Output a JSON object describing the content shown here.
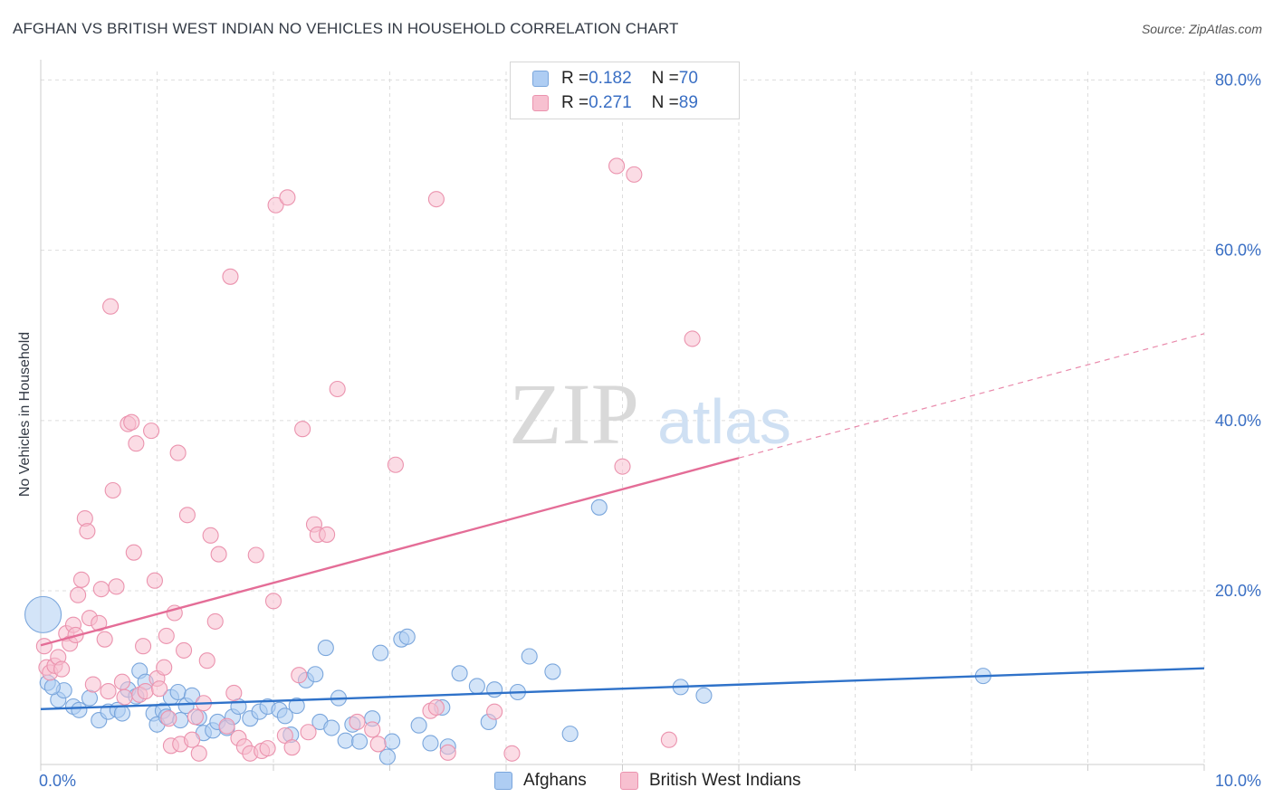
{
  "title": "AFGHAN VS BRITISH WEST INDIAN NO VEHICLES IN HOUSEHOLD CORRELATION CHART",
  "source": "Source: ZipAtlas.com",
  "watermark": {
    "zip": "ZIP",
    "atlas": "atlas"
  },
  "legend": {
    "rows": [
      {
        "r_label": "R = ",
        "r_value": "0.182",
        "n_label": "N = ",
        "n_value": "70"
      },
      {
        "r_label": "R = ",
        "r_value": "0.271",
        "n_label": "N = ",
        "n_value": "89"
      }
    ]
  },
  "colors": {
    "afghans_fill": "#aecdf3",
    "afghans_stroke": "#7aa6dc",
    "afghans_line": "#2f72c9",
    "bwi_fill": "#f7c0d0",
    "bwi_stroke": "#eb93ae",
    "bwi_line": "#e46d97",
    "tick_text": "#3a6fc4",
    "grid": "#dddddd"
  },
  "chart_data": {
    "type": "scatter",
    "title": "AFGHAN VS BRITISH WEST INDIAN NO VEHICLES IN HOUSEHOLD CORRELATION CHART",
    "xlabel": "",
    "ylabel": "No Vehicles in Household",
    "xlim": [
      0,
      10
    ],
    "ylim": [
      -0.4,
      81
    ],
    "x_tick_labels": [
      "0.0%",
      "10.0%"
    ],
    "y_ticks": [
      {
        "value": 20,
        "label": "20.0%"
      },
      {
        "value": 40,
        "label": "40.0%"
      },
      {
        "value": 60,
        "label": "60.0%"
      },
      {
        "value": 80,
        "label": "80.0%"
      }
    ],
    "series": [
      {
        "name": "Afghans",
        "r": 0.182,
        "n": 70,
        "trend": {
          "x": [
            0,
            10
          ],
          "y": [
            6.1,
            10.9
          ],
          "dashed_to": null
        },
        "points": [
          {
            "x": 0.02,
            "y": 17.2,
            "big": true
          },
          {
            "x": 0.06,
            "y": 9.2
          },
          {
            "x": 0.15,
            "y": 7.2
          },
          {
            "x": 0.2,
            "y": 8.3
          },
          {
            "x": 0.28,
            "y": 6.4
          },
          {
            "x": 0.33,
            "y": 6.0
          },
          {
            "x": 0.42,
            "y": 7.4
          },
          {
            "x": 0.5,
            "y": 4.8
          },
          {
            "x": 0.58,
            "y": 5.8
          },
          {
            "x": 0.66,
            "y": 6.0
          },
          {
            "x": 0.7,
            "y": 5.6
          },
          {
            "x": 0.75,
            "y": 8.4
          },
          {
            "x": 0.82,
            "y": 7.6
          },
          {
            "x": 0.85,
            "y": 10.6
          },
          {
            "x": 0.9,
            "y": 9.3
          },
          {
            "x": 0.97,
            "y": 5.6
          },
          {
            "x": 1.0,
            "y": 4.3
          },
          {
            "x": 1.05,
            "y": 5.9
          },
          {
            "x": 1.08,
            "y": 5.2
          },
          {
            "x": 1.12,
            "y": 7.5
          },
          {
            "x": 1.18,
            "y": 8.1
          },
          {
            "x": 1.2,
            "y": 4.8
          },
          {
            "x": 1.25,
            "y": 6.5
          },
          {
            "x": 1.3,
            "y": 7.7
          },
          {
            "x": 1.36,
            "y": 5.1
          },
          {
            "x": 1.4,
            "y": 3.3
          },
          {
            "x": 1.48,
            "y": 3.6
          },
          {
            "x": 1.52,
            "y": 4.6
          },
          {
            "x": 1.6,
            "y": 3.9
          },
          {
            "x": 1.65,
            "y": 5.2
          },
          {
            "x": 1.7,
            "y": 6.4
          },
          {
            "x": 1.8,
            "y": 5.0
          },
          {
            "x": 1.88,
            "y": 5.8
          },
          {
            "x": 1.95,
            "y": 6.4
          },
          {
            "x": 2.05,
            "y": 6.0
          },
          {
            "x": 2.1,
            "y": 5.3
          },
          {
            "x": 2.15,
            "y": 3.1
          },
          {
            "x": 2.2,
            "y": 6.5
          },
          {
            "x": 2.28,
            "y": 9.5
          },
          {
            "x": 2.36,
            "y": 10.2
          },
          {
            "x": 2.4,
            "y": 4.6
          },
          {
            "x": 2.45,
            "y": 13.3
          },
          {
            "x": 2.5,
            "y": 3.9
          },
          {
            "x": 2.56,
            "y": 7.4
          },
          {
            "x": 2.62,
            "y": 2.4
          },
          {
            "x": 2.68,
            "y": 4.3
          },
          {
            "x": 2.74,
            "y": 2.3
          },
          {
            "x": 2.85,
            "y": 5.0
          },
          {
            "x": 2.92,
            "y": 12.7
          },
          {
            "x": 2.98,
            "y": 0.5
          },
          {
            "x": 3.02,
            "y": 2.3
          },
          {
            "x": 3.1,
            "y": 14.3
          },
          {
            "x": 3.15,
            "y": 14.6
          },
          {
            "x": 3.25,
            "y": 4.2
          },
          {
            "x": 3.35,
            "y": 2.1
          },
          {
            "x": 3.45,
            "y": 6.3
          },
          {
            "x": 3.5,
            "y": 1.7
          },
          {
            "x": 3.6,
            "y": 10.3
          },
          {
            "x": 3.75,
            "y": 8.8
          },
          {
            "x": 3.85,
            "y": 4.6
          },
          {
            "x": 3.9,
            "y": 8.4
          },
          {
            "x": 4.1,
            "y": 8.1
          },
          {
            "x": 4.2,
            "y": 12.3
          },
          {
            "x": 4.4,
            "y": 10.5
          },
          {
            "x": 4.55,
            "y": 3.2
          },
          {
            "x": 4.8,
            "y": 29.8
          },
          {
            "x": 5.5,
            "y": 8.7
          },
          {
            "x": 5.7,
            "y": 7.7
          },
          {
            "x": 8.1,
            "y": 10.0
          },
          {
            "x": 0.1,
            "y": 8.7
          }
        ]
      },
      {
        "name": "British West Indians",
        "r": 0.271,
        "n": 89,
        "trend": {
          "x": [
            0,
            6
          ],
          "y": [
            13.6,
            35.6
          ],
          "dashed_to": {
            "x": 10,
            "y": 50.2
          }
        },
        "points": [
          {
            "x": 0.03,
            "y": 13.5
          },
          {
            "x": 0.05,
            "y": 11.0
          },
          {
            "x": 0.08,
            "y": 10.4
          },
          {
            "x": 0.12,
            "y": 11.2
          },
          {
            "x": 0.15,
            "y": 12.2
          },
          {
            "x": 0.18,
            "y": 10.8
          },
          {
            "x": 0.22,
            "y": 15.0
          },
          {
            "x": 0.25,
            "y": 13.8
          },
          {
            "x": 0.28,
            "y": 16.0
          },
          {
            "x": 0.3,
            "y": 14.8
          },
          {
            "x": 0.32,
            "y": 19.5
          },
          {
            "x": 0.35,
            "y": 21.3
          },
          {
            "x": 0.38,
            "y": 28.5
          },
          {
            "x": 0.4,
            "y": 27.0
          },
          {
            "x": 0.42,
            "y": 16.8
          },
          {
            "x": 0.45,
            "y": 9.0
          },
          {
            "x": 0.5,
            "y": 16.2
          },
          {
            "x": 0.52,
            "y": 20.2
          },
          {
            "x": 0.55,
            "y": 14.3
          },
          {
            "x": 0.58,
            "y": 8.2
          },
          {
            "x": 0.6,
            "y": 53.4
          },
          {
            "x": 0.62,
            "y": 31.8
          },
          {
            "x": 0.65,
            "y": 20.5
          },
          {
            "x": 0.7,
            "y": 9.3
          },
          {
            "x": 0.72,
            "y": 7.5
          },
          {
            "x": 0.75,
            "y": 39.6
          },
          {
            "x": 0.78,
            "y": 39.8
          },
          {
            "x": 0.8,
            "y": 24.5
          },
          {
            "x": 0.82,
            "y": 37.3
          },
          {
            "x": 0.85,
            "y": 7.8
          },
          {
            "x": 0.88,
            "y": 13.5
          },
          {
            "x": 0.9,
            "y": 8.2
          },
          {
            "x": 0.95,
            "y": 38.8
          },
          {
            "x": 0.98,
            "y": 21.2
          },
          {
            "x": 1.0,
            "y": 9.7
          },
          {
            "x": 1.02,
            "y": 8.5
          },
          {
            "x": 1.06,
            "y": 11.0
          },
          {
            "x": 1.08,
            "y": 14.7
          },
          {
            "x": 1.1,
            "y": 5.0
          },
          {
            "x": 1.12,
            "y": 1.8
          },
          {
            "x": 1.15,
            "y": 17.4
          },
          {
            "x": 1.18,
            "y": 36.2
          },
          {
            "x": 1.2,
            "y": 2.0
          },
          {
            "x": 1.23,
            "y": 13.0
          },
          {
            "x": 1.26,
            "y": 28.9
          },
          {
            "x": 1.3,
            "y": 2.5
          },
          {
            "x": 1.33,
            "y": 5.2
          },
          {
            "x": 1.36,
            "y": 0.9
          },
          {
            "x": 1.4,
            "y": 6.8
          },
          {
            "x": 1.43,
            "y": 11.8
          },
          {
            "x": 1.46,
            "y": 26.5
          },
          {
            "x": 1.5,
            "y": 16.4
          },
          {
            "x": 1.53,
            "y": 24.3
          },
          {
            "x": 1.6,
            "y": 4.1
          },
          {
            "x": 1.63,
            "y": 56.9
          },
          {
            "x": 1.66,
            "y": 8.0
          },
          {
            "x": 1.7,
            "y": 2.7
          },
          {
            "x": 1.75,
            "y": 1.7
          },
          {
            "x": 1.8,
            "y": 0.9
          },
          {
            "x": 1.85,
            "y": 24.2
          },
          {
            "x": 1.9,
            "y": 1.2
          },
          {
            "x": 1.95,
            "y": 1.5
          },
          {
            "x": 2.0,
            "y": 18.8
          },
          {
            "x": 2.02,
            "y": 65.3
          },
          {
            "x": 2.1,
            "y": 3.0
          },
          {
            "x": 2.12,
            "y": 66.2
          },
          {
            "x": 2.16,
            "y": 1.6
          },
          {
            "x": 2.22,
            "y": 10.1
          },
          {
            "x": 2.25,
            "y": 39.0
          },
          {
            "x": 2.3,
            "y": 3.4
          },
          {
            "x": 2.35,
            "y": 27.8
          },
          {
            "x": 2.38,
            "y": 26.6
          },
          {
            "x": 2.46,
            "y": 26.6
          },
          {
            "x": 2.55,
            "y": 43.7
          },
          {
            "x": 2.72,
            "y": 4.6
          },
          {
            "x": 2.85,
            "y": 3.7
          },
          {
            "x": 2.9,
            "y": 2.0
          },
          {
            "x": 3.05,
            "y": 34.8
          },
          {
            "x": 3.35,
            "y": 5.9
          },
          {
            "x": 3.4,
            "y": 6.3
          },
          {
            "x": 3.4,
            "y": 66.0
          },
          {
            "x": 3.5,
            "y": 1.0
          },
          {
            "x": 3.9,
            "y": 5.8
          },
          {
            "x": 4.05,
            "y": 0.9
          },
          {
            "x": 4.95,
            "y": 69.9
          },
          {
            "x": 5.0,
            "y": 34.6
          },
          {
            "x": 5.1,
            "y": 68.9
          },
          {
            "x": 5.4,
            "y": 2.5
          },
          {
            "x": 5.6,
            "y": 49.6
          }
        ]
      }
    ],
    "legend_position": "top-center"
  },
  "bottom_legend": [
    {
      "label": "Afghans"
    },
    {
      "label": "British West Indians"
    }
  ]
}
